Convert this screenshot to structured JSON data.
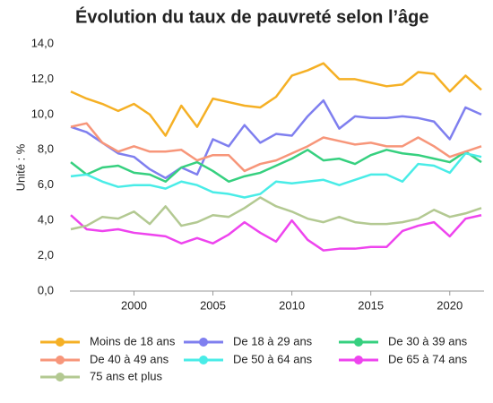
{
  "chart_data": {
    "type": "line",
    "title": "Évolution du taux de pauvreté selon l’âge",
    "y_label": "Unité : %",
    "x": [
      1996,
      1997,
      1998,
      1999,
      2000,
      2001,
      2002,
      2003,
      2004,
      2005,
      2006,
      2007,
      2008,
      2009,
      2010,
      2011,
      2012,
      2013,
      2014,
      2015,
      2016,
      2017,
      2018,
      2019,
      2020,
      2021,
      2022
    ],
    "xlim": [
      1996,
      2022
    ],
    "xticks": [
      2000,
      2005,
      2010,
      2015,
      2020
    ],
    "ylim": [
      0,
      14
    ],
    "yticks": [
      {
        "value": 0,
        "label": "0,0"
      },
      {
        "value": 2,
        "label": "2,0"
      },
      {
        "value": 4,
        "label": "4,0"
      },
      {
        "value": 6,
        "label": "6,0"
      },
      {
        "value": 8,
        "label": "8,0"
      },
      {
        "value": 10,
        "label": "10,0"
      },
      {
        "value": 12,
        "label": "12,0"
      },
      {
        "value": 14,
        "label": "14,0"
      }
    ],
    "grid": false,
    "legend": "bottom",
    "series": [
      {
        "name": "Moins de 18 ans",
        "color": "#f5b025",
        "values": [
          11.3,
          10.9,
          10.6,
          10.2,
          10.6,
          10.0,
          8.8,
          10.5,
          9.3,
          10.9,
          10.7,
          10.5,
          10.4,
          11.0,
          12.2,
          12.5,
          12.9,
          12.0,
          12.0,
          11.8,
          11.6,
          11.7,
          12.4,
          12.3,
          11.3,
          12.2,
          11.4
        ]
      },
      {
        "name": "De 18 à 29 ans",
        "color": "#7f7fef",
        "values": [
          9.3,
          9.0,
          8.4,
          7.8,
          7.6,
          6.9,
          6.4,
          7.0,
          6.6,
          8.6,
          8.2,
          9.4,
          8.4,
          8.9,
          8.8,
          9.9,
          10.8,
          9.2,
          9.9,
          9.8,
          9.8,
          9.9,
          9.8,
          9.6,
          8.6,
          10.4,
          10.0
        ]
      },
      {
        "name": "De 30 à 39 ans",
        "color": "#36d07f",
        "values": [
          7.3,
          6.6,
          7.0,
          7.1,
          6.7,
          6.6,
          6.2,
          7.0,
          7.3,
          6.8,
          6.2,
          6.5,
          6.7,
          7.1,
          7.5,
          8.0,
          7.4,
          7.5,
          7.2,
          7.7,
          8.0,
          7.8,
          7.7,
          7.5,
          7.3,
          7.9,
          7.3
        ]
      },
      {
        "name": "De 40 à 49 ans",
        "color": "#f7967a",
        "values": [
          9.3,
          9.5,
          8.4,
          7.9,
          8.2,
          7.9,
          7.9,
          8.0,
          7.4,
          7.7,
          7.7,
          6.8,
          7.2,
          7.4,
          7.8,
          8.2,
          8.7,
          8.5,
          8.3,
          8.4,
          8.2,
          8.2,
          8.7,
          8.2,
          7.6,
          7.9,
          8.2
        ]
      },
      {
        "name": "De 50 à 64 ans",
        "color": "#49ece7",
        "values": [
          6.5,
          6.6,
          6.2,
          5.9,
          6.0,
          6.0,
          5.8,
          6.2,
          6.0,
          5.6,
          5.5,
          5.3,
          5.5,
          6.2,
          6.1,
          6.2,
          6.3,
          6.0,
          6.3,
          6.6,
          6.6,
          6.2,
          7.2,
          7.1,
          6.7,
          7.8,
          7.6
        ]
      },
      {
        "name": "De 65 à 74 ans",
        "color": "#ee44ee",
        "values": [
          4.3,
          3.5,
          3.4,
          3.5,
          3.3,
          3.2,
          3.1,
          2.7,
          3.0,
          2.7,
          3.2,
          3.9,
          3.3,
          2.8,
          4.0,
          2.9,
          2.3,
          2.4,
          2.4,
          2.5,
          2.5,
          3.4,
          3.7,
          3.9,
          3.1,
          4.1,
          4.3
        ]
      },
      {
        "name": "75 ans et plus",
        "color": "#b3c992",
        "values": [
          3.5,
          3.7,
          4.2,
          4.1,
          4.5,
          3.8,
          4.8,
          3.7,
          3.9,
          4.3,
          4.2,
          4.7,
          5.3,
          4.8,
          4.5,
          4.1,
          3.9,
          4.2,
          3.9,
          3.8,
          3.8,
          3.9,
          4.1,
          4.6,
          4.2,
          4.4,
          4.7
        ]
      }
    ]
  }
}
